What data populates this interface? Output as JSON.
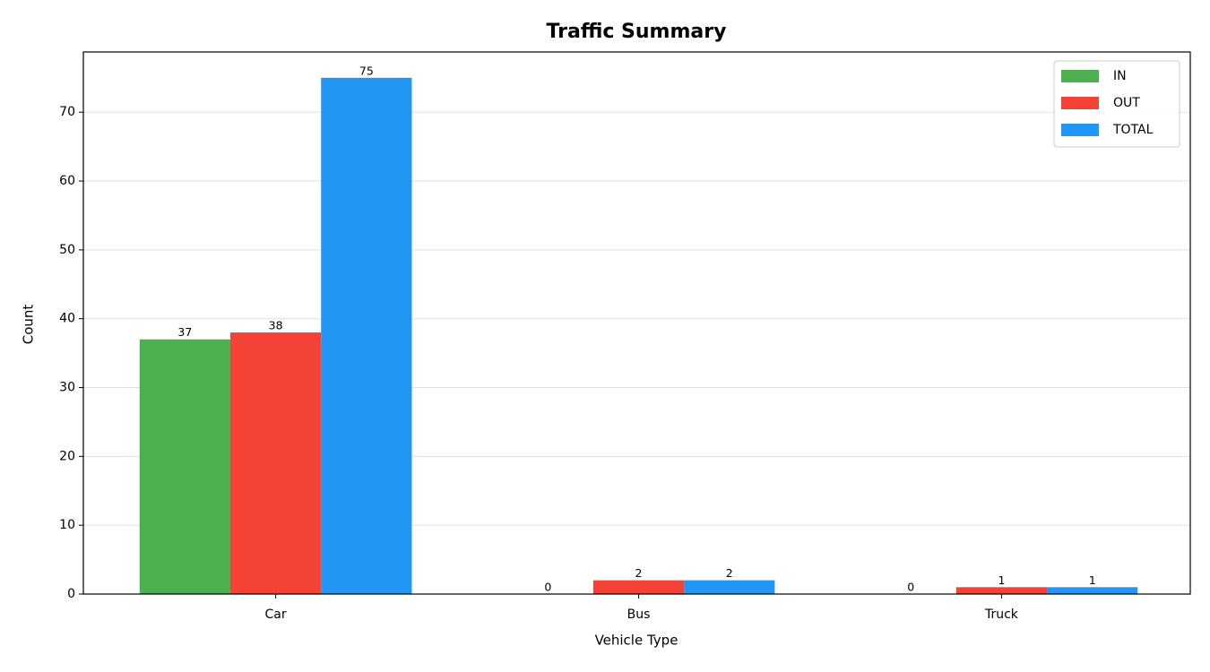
{
  "chart_data": {
    "type": "bar",
    "title": "Traffic Summary",
    "x_label": "Vehicle Type",
    "y_label": "Count",
    "categories": [
      "Car",
      "Bus",
      "Truck"
    ],
    "series": [
      {
        "name": "IN",
        "color": "#4caf50",
        "values": [
          37,
          0,
          0
        ]
      },
      {
        "name": "OUT",
        "color": "#f44336",
        "values": [
          38,
          2,
          1
        ]
      },
      {
        "name": "TOTAL",
        "color": "#2196f3",
        "values": [
          75,
          2,
          1
        ]
      }
    ],
    "ylim": [
      0,
      78.75
    ],
    "yticks": [
      0,
      10,
      20,
      30,
      40,
      50,
      60,
      70
    ],
    "grid": true,
    "legend": "upper right"
  }
}
